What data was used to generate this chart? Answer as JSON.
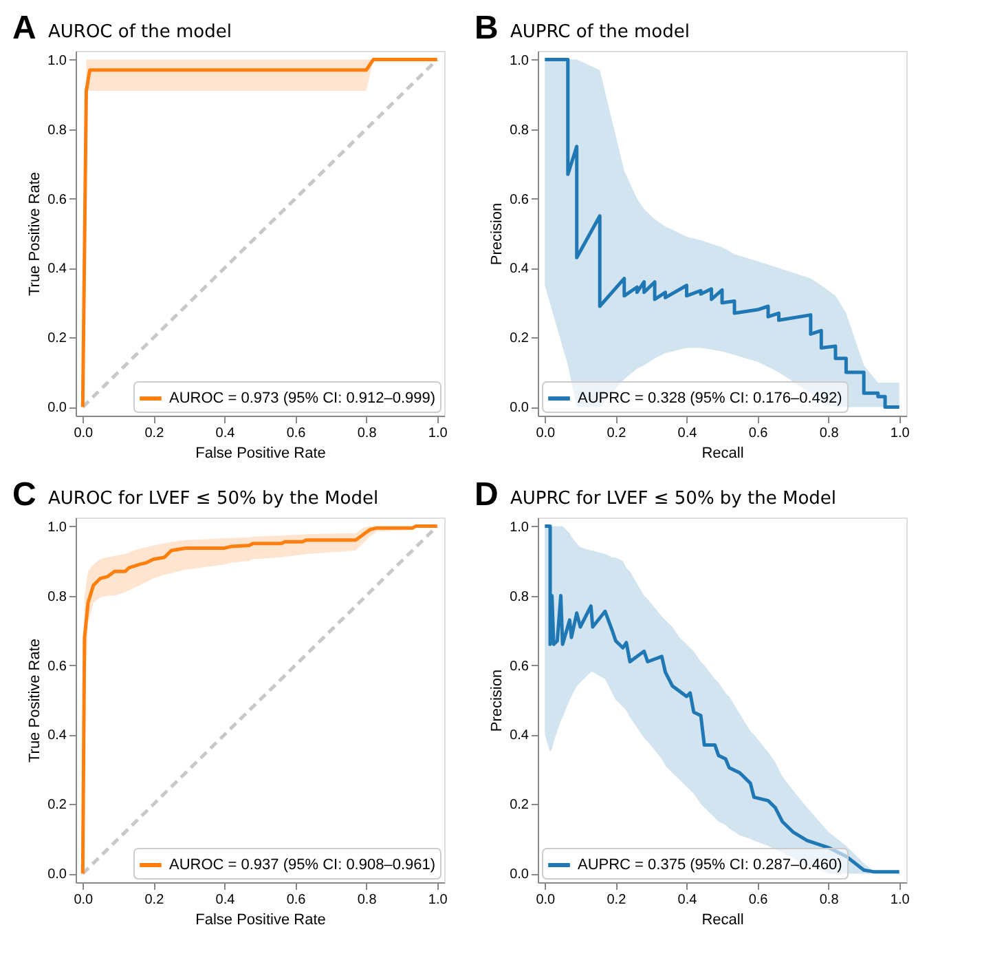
{
  "chart_data": [
    {
      "type": "line",
      "title": "AUROC of the model",
      "xlabel": "False Positive Rate",
      "ylabel": "True Positive Rate",
      "annotations": [
        "A"
      ],
      "xlim": [
        -0.02,
        1.02
      ],
      "ylim": [
        -0.025,
        1.025
      ],
      "xticks": [
        {
          "value": 0,
          "label": "0.0"
        },
        {
          "value": 0.2,
          "label": "0.2"
        },
        {
          "value": 0.4,
          "label": "0.4"
        },
        {
          "value": 0.6,
          "label": "0.6"
        },
        {
          "value": 0.8,
          "label": "0.8"
        },
        {
          "value": 1,
          "label": "1.0"
        }
      ],
      "yticks": [
        {
          "value": 0,
          "label": "0.0"
        },
        {
          "value": 0.2,
          "label": "0.2"
        },
        {
          "value": 0.4,
          "label": "0.4"
        },
        {
          "value": 0.6,
          "label": "0.6"
        },
        {
          "value": 0.8,
          "label": "0.8"
        },
        {
          "value": 1,
          "label": "1.0"
        }
      ],
      "grid": false,
      "legend": "bottom right",
      "series": [
        {
          "type": "line",
          "color": "#c8c8c8",
          "line_style": "dashed",
          "x": [
            0,
            1
          ],
          "values": [
            0,
            1
          ]
        },
        {
          "name": "AUROC = 0.973 (95% CI: 0.912–0.999)",
          "color": "#ff7f0e",
          "x": [
            0,
            0.01,
            0.02,
            0.8,
            0.82,
            1
          ],
          "values": [
            0,
            0.91,
            0.97,
            0.97,
            1,
            1
          ],
          "lower": [
            0,
            0.91,
            0.91,
            0.91,
            1,
            1
          ],
          "upper": [
            0,
            1,
            1,
            1,
            1,
            1
          ]
        }
      ]
    },
    {
      "type": "line",
      "title": "AUPRC of the model",
      "xlabel": "Recall",
      "ylabel": "Precision",
      "annotations": [
        "B"
      ],
      "xlim": [
        -0.02,
        1.02
      ],
      "ylim": [
        -0.025,
        1.025
      ],
      "xticks": [
        {
          "value": 0,
          "label": "0.0"
        },
        {
          "value": 0.2,
          "label": "0.2"
        },
        {
          "value": 0.4,
          "label": "0.4"
        },
        {
          "value": 0.6,
          "label": "0.6"
        },
        {
          "value": 0.8,
          "label": "0.8"
        },
        {
          "value": 1,
          "label": "1.0"
        }
      ],
      "yticks": [
        {
          "value": 0,
          "label": "0.0"
        },
        {
          "value": 0.2,
          "label": "0.2"
        },
        {
          "value": 0.4,
          "label": "0.4"
        },
        {
          "value": 0.6,
          "label": "0.6"
        },
        {
          "value": 0.8,
          "label": "0.8"
        },
        {
          "value": 1,
          "label": "1.0"
        }
      ],
      "grid": false,
      "legend": "bottom left",
      "series": [
        {
          "name": "AUPRC = 0.328 (95% CI: 0.176–0.492)",
          "color": "#1f77b4",
          "x": [
            0,
            0.065,
            0.065,
            0.09,
            0.09,
            0.155,
            0.155,
            0.224,
            0.224,
            0.26,
            0.26,
            0.28,
            0.28,
            0.31,
            0.31,
            0.34,
            0.34,
            0.4,
            0.4,
            0.44,
            0.44,
            0.47,
            0.47,
            0.5,
            0.5,
            0.535,
            0.535,
            0.6,
            0.63,
            0.63,
            0.66,
            0.66,
            0.75,
            0.75,
            0.78,
            0.78,
            0.82,
            0.82,
            0.85,
            0.85,
            0.9,
            0.9,
            0.94,
            0.94,
            0.96,
            0.96,
            1.0
          ],
          "values": [
            1,
            1,
            0.67,
            0.75,
            0.43,
            0.55,
            0.29,
            0.37,
            0.32,
            0.345,
            0.33,
            0.36,
            0.33,
            0.36,
            0.31,
            0.33,
            0.315,
            0.35,
            0.32,
            0.335,
            0.325,
            0.34,
            0.31,
            0.337,
            0.3,
            0.305,
            0.27,
            0.28,
            0.29,
            0.26,
            0.27,
            0.25,
            0.265,
            0.21,
            0.22,
            0.17,
            0.175,
            0.14,
            0.14,
            0.1,
            0.1,
            0.04,
            0.04,
            0.03,
            0.03,
            0,
            0
          ],
          "lower": [
            0.35,
            0.12,
            0.12,
            0,
            0,
            0,
            0,
            0.08,
            0.08,
            0.11,
            0.11,
            0.12,
            0.12,
            0.14,
            0.14,
            0.155,
            0.155,
            0.17,
            0.17,
            0.17,
            0.17,
            0.165,
            0.165,
            0.16,
            0.16,
            0.15,
            0.15,
            0.13,
            0.115,
            0.115,
            0.1,
            0.1,
            0.04,
            0.04,
            0.01,
            0.01,
            0,
            0,
            0,
            0,
            0,
            0,
            0,
            0,
            0,
            0,
            0
          ],
          "upper": [
            1,
            1,
            1,
            1,
            1,
            0.97,
            0.97,
            0.68,
            0.68,
            0.6,
            0.6,
            0.57,
            0.57,
            0.54,
            0.54,
            0.52,
            0.52,
            0.49,
            0.49,
            0.48,
            0.48,
            0.47,
            0.47,
            0.46,
            0.46,
            0.44,
            0.44,
            0.42,
            0.41,
            0.41,
            0.4,
            0.4,
            0.37,
            0.37,
            0.35,
            0.35,
            0.32,
            0.32,
            0.27,
            0.27,
            0.12,
            0.12,
            0.07,
            0.07,
            0.07,
            0.07,
            0.07
          ]
        }
      ]
    },
    {
      "type": "line",
      "title": "AUROC for LVEF ≤ 50% by the Model",
      "xlabel": "False Positive Rate",
      "ylabel": "True Positive Rate",
      "annotations": [
        "C"
      ],
      "xlim": [
        -0.02,
        1.02
      ],
      "ylim": [
        -0.025,
        1.025
      ],
      "xticks": [
        {
          "value": 0,
          "label": "0.0"
        },
        {
          "value": 0.2,
          "label": "0.2"
        },
        {
          "value": 0.4,
          "label": "0.4"
        },
        {
          "value": 0.6,
          "label": "0.6"
        },
        {
          "value": 0.8,
          "label": "0.8"
        },
        {
          "value": 1,
          "label": "1.0"
        }
      ],
      "yticks": [
        {
          "value": 0,
          "label": "0.0"
        },
        {
          "value": 0.2,
          "label": "0.2"
        },
        {
          "value": 0.4,
          "label": "0.4"
        },
        {
          "value": 0.6,
          "label": "0.6"
        },
        {
          "value": 0.8,
          "label": "0.8"
        },
        {
          "value": 1,
          "label": "1.0"
        }
      ],
      "grid": false,
      "legend": "bottom right",
      "series": [
        {
          "type": "line",
          "color": "#c8c8c8",
          "line_style": "dashed",
          "x": [
            0,
            1
          ],
          "values": [
            0,
            1
          ]
        },
        {
          "name": "AUROC = 0.937 (95% CI: 0.908–0.961)",
          "color": "#ff7f0e",
          "x": [
            0,
            0.005,
            0.015,
            0.03,
            0.05,
            0.07,
            0.09,
            0.12,
            0.13,
            0.16,
            0.18,
            0.2,
            0.23,
            0.25,
            0.29,
            0.4,
            0.42,
            0.47,
            0.48,
            0.56,
            0.57,
            0.62,
            0.63,
            0.77,
            0.79,
            0.81,
            0.83,
            0.93,
            0.94,
            1
          ],
          "values": [
            0,
            0.68,
            0.78,
            0.83,
            0.85,
            0.855,
            0.87,
            0.87,
            0.88,
            0.89,
            0.895,
            0.905,
            0.91,
            0.93,
            0.937,
            0.937,
            0.942,
            0.945,
            0.95,
            0.95,
            0.955,
            0.955,
            0.96,
            0.96,
            0.975,
            0.99,
            0.995,
            0.995,
            1,
            1
          ],
          "lower": [
            0,
            0.5,
            0.72,
            0.78,
            0.795,
            0.8,
            0.8,
            0.81,
            0.815,
            0.83,
            0.84,
            0.85,
            0.86,
            0.865,
            0.875,
            0.89,
            0.895,
            0.9,
            0.905,
            0.91,
            0.912,
            0.918,
            0.92,
            0.93,
            0.95,
            0.97,
            0.985,
            0.99,
            1,
            1
          ],
          "upper": [
            0,
            0.8,
            0.87,
            0.89,
            0.905,
            0.91,
            0.915,
            0.92,
            0.925,
            0.935,
            0.94,
            0.945,
            0.95,
            0.955,
            0.96,
            0.965,
            0.966,
            0.968,
            0.97,
            0.973,
            0.974,
            0.976,
            0.977,
            0.98,
            0.995,
            1,
            1,
            1,
            1,
            1
          ]
        }
      ]
    },
    {
      "type": "line",
      "title": "AUPRC for LVEF ≤ 50% by the Model",
      "xlabel": "Recall",
      "ylabel": "Precision",
      "annotations": [
        "D"
      ],
      "xlim": [
        -0.02,
        1.02
      ],
      "ylim": [
        -0.025,
        1.025
      ],
      "xticks": [
        {
          "value": 0,
          "label": "0.0"
        },
        {
          "value": 0.2,
          "label": "0.2"
        },
        {
          "value": 0.4,
          "label": "0.4"
        },
        {
          "value": 0.6,
          "label": "0.6"
        },
        {
          "value": 0.8,
          "label": "0.8"
        },
        {
          "value": 1,
          "label": "1.0"
        }
      ],
      "yticks": [
        {
          "value": 0,
          "label": "0.0"
        },
        {
          "value": 0.2,
          "label": "0.2"
        },
        {
          "value": 0.4,
          "label": "0.4"
        },
        {
          "value": 0.6,
          "label": "0.6"
        },
        {
          "value": 0.8,
          "label": "0.8"
        },
        {
          "value": 1,
          "label": "1.0"
        }
      ],
      "grid": false,
      "legend": "bottom left",
      "series": [
        {
          "name": "AUPRC = 0.375 (95% CI: 0.287–0.460)",
          "color": "#1f77b4",
          "x": [
            0,
            0.015,
            0.015,
            0.02,
            0.025,
            0.035,
            0.045,
            0.05,
            0.07,
            0.075,
            0.09,
            0.1,
            0.13,
            0.135,
            0.17,
            0.19,
            0.2,
            0.22,
            0.23,
            0.24,
            0.28,
            0.29,
            0.33,
            0.34,
            0.36,
            0.38,
            0.4,
            0.41,
            0.42,
            0.44,
            0.45,
            0.48,
            0.49,
            0.51,
            0.52,
            0.55,
            0.58,
            0.59,
            0.63,
            0.65,
            0.67,
            0.7,
            0.74,
            0.8,
            0.85,
            0.9,
            0.93,
            1.0
          ],
          "values": [
            1,
            1,
            0.66,
            0.8,
            0.66,
            0.67,
            0.8,
            0.66,
            0.73,
            0.68,
            0.75,
            0.71,
            0.77,
            0.71,
            0.755,
            0.7,
            0.67,
            0.65,
            0.665,
            0.61,
            0.64,
            0.61,
            0.625,
            0.58,
            0.54,
            0.525,
            0.51,
            0.52,
            0.465,
            0.455,
            0.37,
            0.37,
            0.34,
            0.33,
            0.305,
            0.29,
            0.26,
            0.22,
            0.21,
            0.19,
            0.15,
            0.12,
            0.095,
            0.075,
            0.05,
            0.01,
            0.005,
            0.005
          ],
          "lower": [
            0.4,
            0.35,
            0.35,
            0.36,
            0.38,
            0.41,
            0.44,
            0.45,
            0.5,
            0.51,
            0.54,
            0.55,
            0.58,
            0.58,
            0.56,
            0.52,
            0.5,
            0.48,
            0.47,
            0.45,
            0.39,
            0.38,
            0.33,
            0.31,
            0.29,
            0.27,
            0.25,
            0.24,
            0.23,
            0.2,
            0.19,
            0.16,
            0.15,
            0.14,
            0.13,
            0.11,
            0.1,
            0.095,
            0.08,
            0.07,
            0.06,
            0.045,
            0.025,
            0,
            0,
            0,
            0,
            0
          ],
          "upper": [
            1,
            1,
            1,
            1,
            1,
            1,
            1,
            1,
            0.98,
            0.97,
            0.95,
            0.94,
            0.93,
            0.93,
            0.92,
            0.91,
            0.91,
            0.9,
            0.88,
            0.87,
            0.8,
            0.79,
            0.74,
            0.73,
            0.71,
            0.68,
            0.66,
            0.65,
            0.64,
            0.61,
            0.6,
            0.56,
            0.55,
            0.52,
            0.51,
            0.46,
            0.41,
            0.4,
            0.35,
            0.32,
            0.28,
            0.24,
            0.19,
            0.12,
            0.08,
            0.03,
            0.005,
            0.005
          ]
        }
      ]
    }
  ]
}
